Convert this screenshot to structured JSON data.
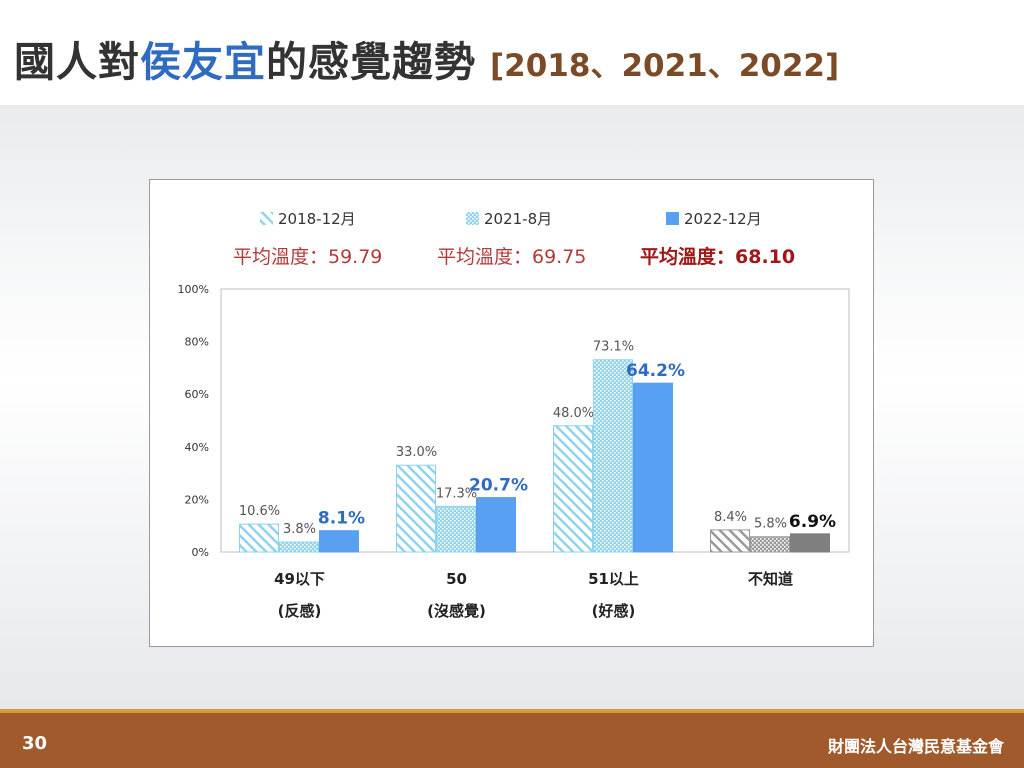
{
  "slide": {
    "title_part1": "國人對",
    "title_highlight": "侯友宜",
    "title_part2": "的感覺趨勢",
    "title_years": "[2018、2021、2022]",
    "page_number": "30",
    "organization": "財團法人台灣民意基金會"
  },
  "colors": {
    "series_2018": "#8fd3ee",
    "series_2021": "#8fd3ee",
    "series_2022": "#5aa0f2",
    "unknown_2018": "#9a9a9a",
    "unknown_2021": "#9a9a9a",
    "unknown_2022": "#7f7f7f",
    "highlight_label": "#2f6bc0",
    "avg_text": "#b23a3a",
    "footer": "#a05a2c"
  },
  "chart_data": {
    "type": "bar",
    "categories": [
      "49以下 (反感)",
      "50 (沒感覺)",
      "51以上 (好感)",
      "不知道"
    ],
    "category_lines": [
      [
        "49以下",
        "(反感)"
      ],
      [
        "50",
        "(沒感覺)"
      ],
      [
        "51以上",
        "(好感)"
      ],
      [
        "不知道",
        ""
      ]
    ],
    "series": [
      {
        "name": "2018-12月",
        "values": [
          10.6,
          33.0,
          48.0,
          8.4
        ],
        "labels": [
          "10.6%",
          "33.0%",
          "48.0%",
          "8.4%"
        ],
        "average": "平均溫度：59.79"
      },
      {
        "name": "2021-8月",
        "values": [
          3.8,
          17.3,
          73.1,
          5.8
        ],
        "labels": [
          "3.8%",
          "17.3%",
          "73.1%",
          "5.8%"
        ],
        "average": "平均溫度：69.75"
      },
      {
        "name": "2022-12月",
        "values": [
          8.1,
          20.7,
          64.2,
          6.9
        ],
        "labels": [
          "8.1%",
          "20.7%",
          "64.2%",
          "6.9%"
        ],
        "average": "平均溫度：68.10"
      }
    ],
    "ylim": [
      0,
      100
    ],
    "yticks": [
      0,
      20,
      40,
      60,
      80,
      100
    ],
    "ytick_labels": [
      "0%",
      "20%",
      "40%",
      "60%",
      "80%",
      "100%"
    ],
    "legend_position": "top",
    "grid": false
  }
}
